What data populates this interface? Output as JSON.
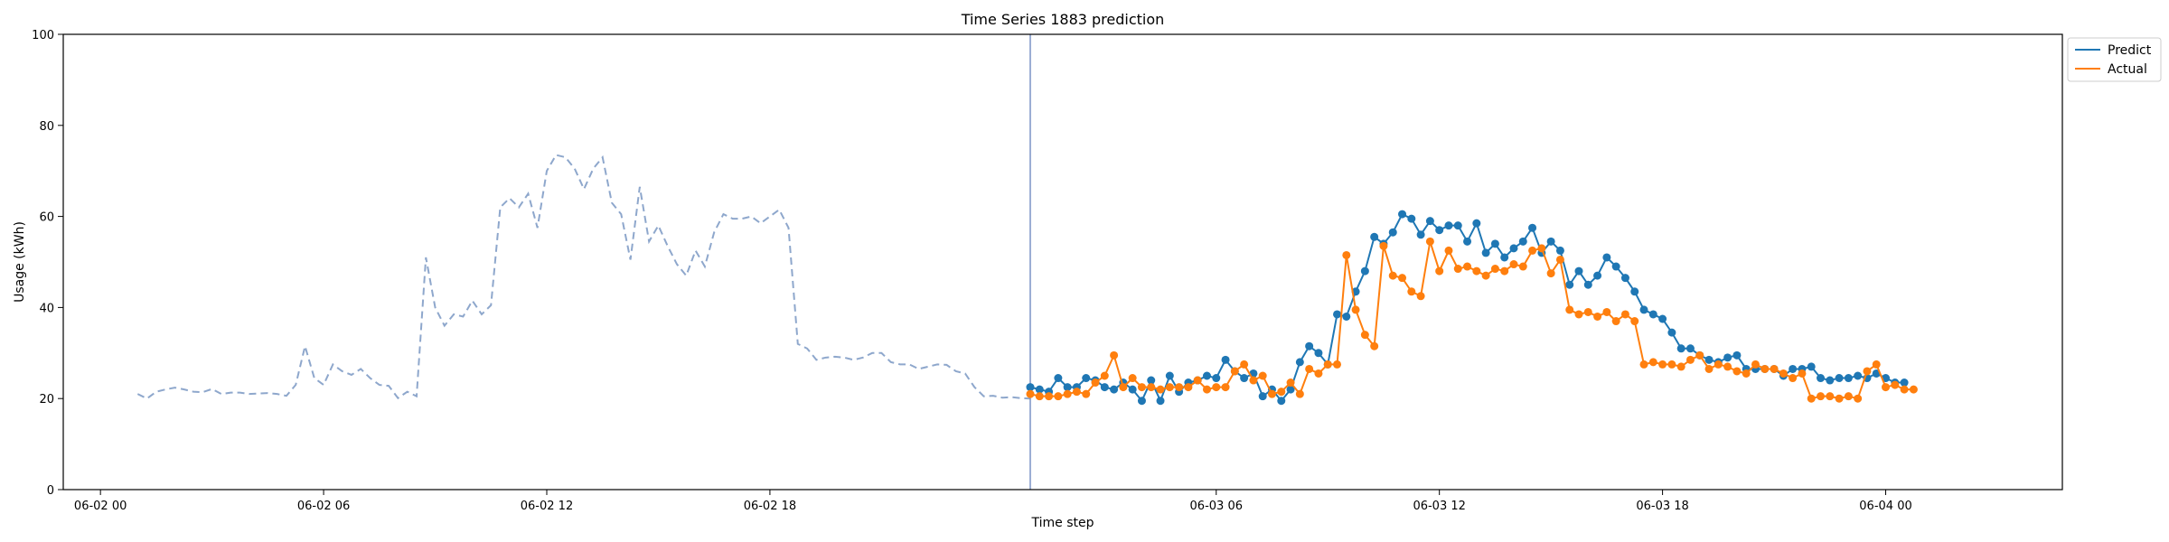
{
  "chart_data": {
    "type": "line",
    "title": "Time Series 1883 prediction",
    "xlabel": "Time step",
    "ylabel": "Usage (kWh)",
    "ylim": [
      0,
      100
    ],
    "yticks": [
      0,
      20,
      40,
      60,
      80,
      100
    ],
    "xlim": [
      "06-01 23:00",
      "06-04 04:45"
    ],
    "xticks": [
      "06-02 00",
      "06-02 06",
      "06-02 12",
      "06-02 18",
      "06-03 06",
      "06-03 12",
      "06-03 18",
      "06-04 00"
    ],
    "grid": false,
    "legend": "top-right",
    "forecast_start": "06-03 01:00",
    "colors": {
      "history": "#8ea7cc",
      "predict": "#1f77b4",
      "actual": "#ff7f0e",
      "divider": "#7b93c6"
    },
    "history": {
      "start": "06-02 01:00",
      "step_minutes": 15,
      "values": [
        21.0,
        20.0,
        21.5,
        22.0,
        22.4,
        22.0,
        21.5,
        21.4,
        22.1,
        21.0,
        21.3,
        21.3,
        21.0,
        21.1,
        21.2,
        21.0,
        20.6,
        23.0,
        31.5,
        24.5,
        23.0,
        27.5,
        26.0,
        25.2,
        26.5,
        24.5,
        23.0,
        22.8,
        20.1,
        21.5,
        20.5,
        51.0,
        40.0,
        36.0,
        38.5,
        38.0,
        41.5,
        38.5,
        40.5,
        62.0,
        64.0,
        62.0,
        65.0,
        57.5,
        70.0,
        73.5,
        73.0,
        70.5,
        66.0,
        70.5,
        73.0,
        63.0,
        60.5,
        50.5,
        66.5,
        54.5,
        58.0,
        53.5,
        49.5,
        47.0,
        52.5,
        49.0,
        56.5,
        60.5,
        59.5,
        59.5,
        60.0,
        58.5,
        60.0,
        61.5,
        57.5,
        32.0,
        31.0,
        28.5,
        29.0,
        29.2,
        29.0,
        28.5,
        29.0,
        30.0,
        30.0,
        28.0,
        27.5,
        27.5,
        26.5,
        27.0,
        27.5,
        27.4,
        26.0,
        25.5,
        22.5,
        20.5,
        20.6,
        20.2,
        20.3,
        20.1,
        20.0
      ]
    },
    "series": [
      {
        "name": "Predict",
        "start": "06-03 01:00",
        "step_minutes": 15,
        "values": [
          22.5,
          22.0,
          21.5,
          24.5,
          22.5,
          22.5,
          24.5,
          24.0,
          22.5,
          22.0,
          23.5,
          22.0,
          19.5,
          24.0,
          19.5,
          25.0,
          21.5,
          23.5,
          24.0,
          25.0,
          24.5,
          28.5,
          26.0,
          24.5,
          25.5,
          20.5,
          22.0,
          19.5,
          22.0,
          28.0,
          31.5,
          30.0,
          27.5,
          38.5,
          38.0,
          43.5,
          48.0,
          55.5,
          54.0,
          56.5,
          60.5,
          59.5,
          56.0,
          59.0,
          57.0,
          58.0,
          58.0,
          54.5,
          58.5,
          52.0,
          54.0,
          51.0,
          53.0,
          54.5,
          57.5,
          52.0,
          54.5,
          52.5,
          45.0,
          48.0,
          45.0,
          47.0,
          51.0,
          49.0,
          46.5,
          43.5,
          39.5,
          38.5,
          37.5,
          34.5,
          31.0,
          31.0,
          29.5,
          28.5,
          28.0,
          29.0,
          29.5,
          26.5,
          26.5,
          26.5,
          26.5,
          25.0,
          26.5,
          26.5,
          27.0,
          24.5,
          24.0,
          24.5,
          24.5,
          25.0,
          24.5,
          25.5,
          24.5,
          23.5,
          23.5
        ]
      },
      {
        "name": "Actual",
        "start": "06-03 01:00",
        "step_minutes": 15,
        "values": [
          21.0,
          20.5,
          20.5,
          20.5,
          21.0,
          21.5,
          21.0,
          23.5,
          25.0,
          29.5,
          22.5,
          24.5,
          22.5,
          22.5,
          22.0,
          22.5,
          22.5,
          22.5,
          24.0,
          22.0,
          22.5,
          22.5,
          26.0,
          27.5,
          24.0,
          25.0,
          21.0,
          21.5,
          23.5,
          21.0,
          26.5,
          25.5,
          27.5,
          27.5,
          51.5,
          39.5,
          34.0,
          31.5,
          53.5,
          47.0,
          46.5,
          43.5,
          42.5,
          54.5,
          48.0,
          52.5,
          48.5,
          49.0,
          48.0,
          47.0,
          48.5,
          48.0,
          49.5,
          49.0,
          52.5,
          53.0,
          47.5,
          50.5,
          39.5,
          38.5,
          39.0,
          38.0,
          39.0,
          37.0,
          38.5,
          37.0,
          27.5,
          28.0,
          27.5,
          27.5,
          27.0,
          28.5,
          29.5,
          26.5,
          27.5,
          27.0,
          26.0,
          25.5,
          27.5,
          26.5,
          26.5,
          25.5,
          24.5,
          25.5,
          20.0,
          20.5,
          20.5,
          20.0,
          20.5,
          20.0,
          26.0,
          27.5,
          22.5,
          23.0,
          22.0,
          22.0
        ]
      }
    ]
  }
}
